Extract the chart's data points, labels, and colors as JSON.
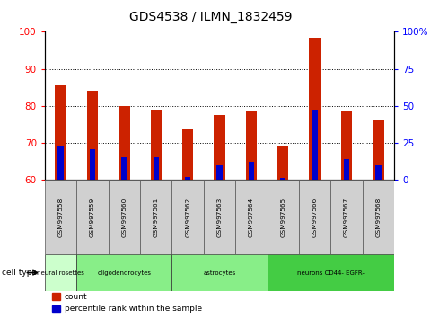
{
  "title": "GDS4538 / ILMN_1832459",
  "samples": [
    "GSM997558",
    "GSM997559",
    "GSM997560",
    "GSM997561",
    "GSM997562",
    "GSM997563",
    "GSM997564",
    "GSM997565",
    "GSM997566",
    "GSM997567",
    "GSM997568"
  ],
  "count_values": [
    85.5,
    84.0,
    80.0,
    79.0,
    73.5,
    77.5,
    78.5,
    69.0,
    98.5,
    78.5,
    76.0
  ],
  "percentile_values": [
    22.5,
    20.5,
    15.0,
    15.0,
    2.0,
    10.0,
    12.0,
    1.0,
    47.5,
    14.0,
    10.0
  ],
  "ylim_left": [
    60,
    100
  ],
  "ylim_right": [
    0,
    100
  ],
  "yticks_left": [
    60,
    70,
    80,
    90,
    100
  ],
  "yticks_right": [
    0,
    25,
    50,
    75,
    100
  ],
  "ytick_labels_right": [
    "0",
    "25",
    "50",
    "75",
    "100%"
  ],
  "bar_color": "#cc2200",
  "percentile_color": "#0000cc",
  "bar_width": 0.35,
  "blue_bar_width": 0.18,
  "sample_bg": "#d0d0d0",
  "group_bounds": [
    {
      "start": 0,
      "end": 1,
      "label": "neural rosettes",
      "color": "#ccffcc"
    },
    {
      "start": 1,
      "end": 4,
      "label": "oligodendrocytes",
      "color": "#88ee88"
    },
    {
      "start": 4,
      "end": 7,
      "label": "astrocytes",
      "color": "#88ee88"
    },
    {
      "start": 7,
      "end": 11,
      "label": "neurons CD44- EGFR-",
      "color": "#44cc44"
    }
  ],
  "cell_type_label": "cell type"
}
